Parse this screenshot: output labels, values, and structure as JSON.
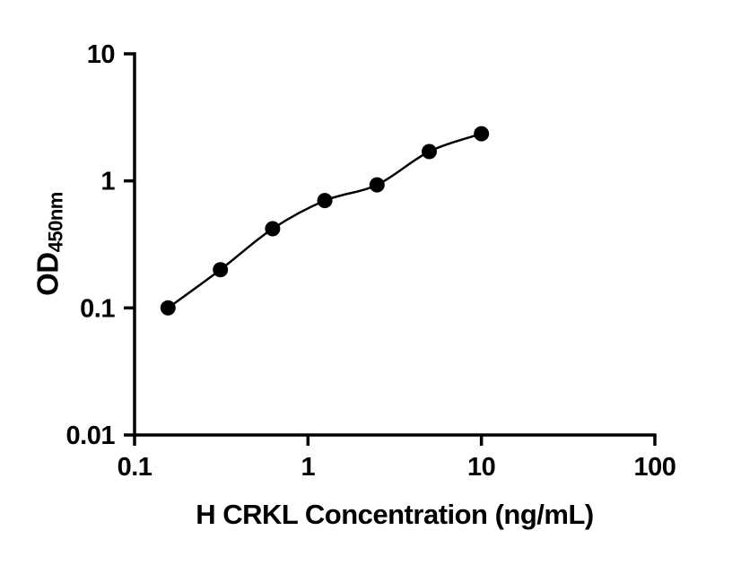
{
  "chart_data": {
    "type": "scatter",
    "x": [
      0.156,
      0.3125,
      0.625,
      1.25,
      2.5,
      5,
      10
    ],
    "y": [
      0.1,
      0.2,
      0.42,
      0.7,
      0.93,
      1.7,
      2.35
    ],
    "fit_line": true,
    "xlabel": "H CRKL Concentration (ng/mL)",
    "ylabel_main": "OD",
    "ylabel_sub": "450nm",
    "xscale": "log",
    "yscale": "log",
    "xlim": [
      0.1,
      100
    ],
    "ylim": [
      0.01,
      10
    ],
    "x_ticks": [
      "0.1",
      "1",
      "10",
      "100"
    ],
    "y_ticks": [
      "0.01",
      "0.1",
      "1",
      "10"
    ],
    "grid": false,
    "legend": false,
    "colors": {
      "marker": "#000000",
      "line": "#000000",
      "axis": "#000000",
      "text": "#000000",
      "background": "#ffffff"
    }
  }
}
